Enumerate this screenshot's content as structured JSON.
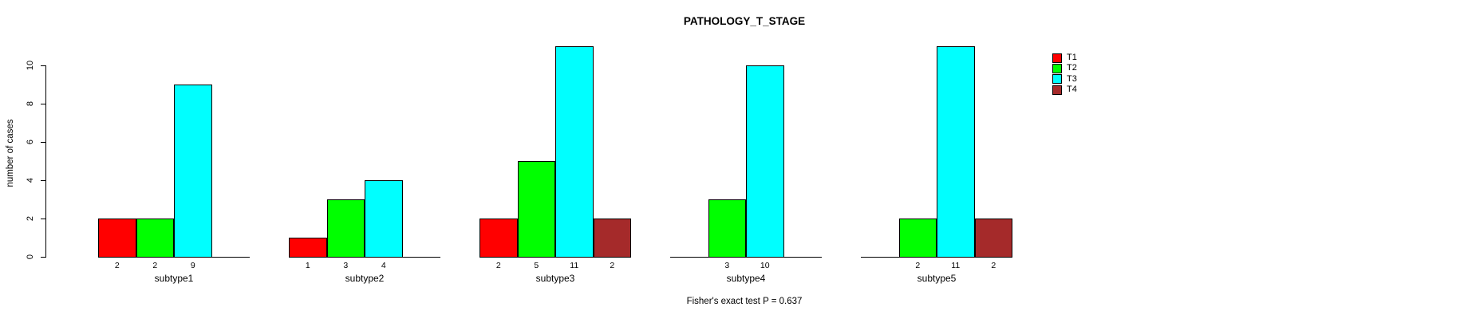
{
  "chart_data": {
    "type": "bar",
    "title": "PATHOLOGY_T_STAGE",
    "xlabel": "",
    "ylabel": "number of cases",
    "ylim": [
      0,
      10
    ],
    "yticks": [
      0,
      2,
      4,
      6,
      8,
      10
    ],
    "grid": false,
    "legend_position": "top-right",
    "bar_value_labels": true,
    "annotation": "Fisher's exact test P = 0.637",
    "categories": [
      "subtype1",
      "subtype2",
      "subtype3",
      "subtype4",
      "subtype5"
    ],
    "series": [
      {
        "name": "T1",
        "color": "#FF0000",
        "values": [
          2,
          1,
          2,
          0,
          0
        ]
      },
      {
        "name": "T2",
        "color": "#00FF00",
        "values": [
          2,
          3,
          5,
          3,
          2
        ]
      },
      {
        "name": "T3",
        "color": "#00FFFF",
        "values": [
          9,
          4,
          11,
          10,
          11
        ]
      },
      {
        "name": "T4",
        "color": "#A52A2A",
        "values": [
          0,
          0,
          2,
          0,
          2
        ]
      }
    ]
  }
}
